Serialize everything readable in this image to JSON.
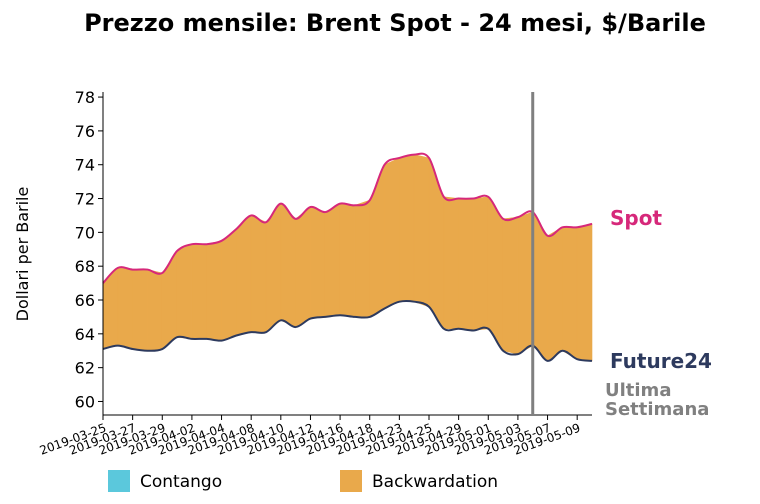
{
  "chart_data": {
    "type": "spread",
    "title": "Prezzo mensile: Brent Spot - 24 mesi, $/Barile",
    "y_label": "Dollari per Barile",
    "categories": [
      "2019-03-25",
      null,
      "2019-03-27",
      null,
      "2019-03-29",
      null,
      "2019-04-02",
      null,
      "2019-04-04",
      null,
      "2019-04-08",
      null,
      "2019-04-10",
      null,
      "2019-04-12",
      null,
      "2019-04-16",
      null,
      "2019-04-18",
      null,
      "2019-04-23",
      null,
      "2019-04-25",
      null,
      "2019-04-29",
      null,
      "2019-05-01",
      null,
      "2019-05-03",
      null,
      "2019-05-07",
      null,
      "2019-05-09",
      null
    ],
    "series": [
      {
        "name": "Spot",
        "color": "#d6287a",
        "values": [
          67.0,
          67.9,
          67.8,
          67.8,
          67.6,
          68.9,
          69.3,
          69.3,
          69.5,
          70.2,
          71.0,
          70.6,
          71.7,
          70.8,
          71.5,
          71.2,
          71.7,
          71.6,
          71.9,
          74.0,
          74.4,
          74.6,
          74.4,
          72.1,
          72.0,
          72.0,
          72.1,
          70.8,
          70.9,
          71.2,
          69.8,
          70.3,
          70.3,
          70.5
        ]
      },
      {
        "name": "Future24",
        "color": "#2d3a5e",
        "values": [
          63.1,
          63.3,
          63.1,
          63.0,
          63.1,
          63.8,
          63.7,
          63.7,
          63.6,
          63.9,
          64.1,
          64.1,
          64.8,
          64.4,
          64.9,
          65.0,
          65.1,
          65.0,
          65.0,
          65.5,
          65.9,
          65.9,
          65.6,
          64.3,
          64.3,
          64.2,
          64.3,
          63.0,
          62.8,
          63.3,
          62.4,
          63.0,
          62.5,
          62.4
        ]
      }
    ],
    "fill_legend": [
      {
        "name": "Contango",
        "color": "#5bc8dc"
      },
      {
        "name": "Backwardation",
        "color": "#e9a94b"
      }
    ],
    "vline_index": 29,
    "vline_label": [
      "Ultima",
      "Settimana"
    ],
    "vline_color": "#808080",
    "ylim": [
      59.2,
      78.3
    ],
    "yticks": [
      60,
      62,
      64,
      66,
      68,
      70,
      72,
      74,
      76,
      78
    ]
  }
}
